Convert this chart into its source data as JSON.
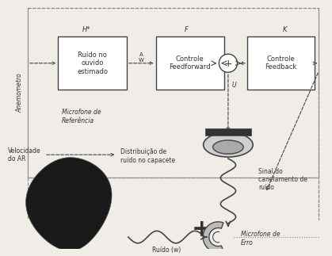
{
  "fig_width": 4.19,
  "fig_height": 3.23,
  "dpi": 100,
  "bg": "#f0ede8",
  "fc": "#ffffff",
  "ec": "#444444",
  "dc": "#888888",
  "tc": "#333333",
  "box1_label": "Ruído no\nouvido\nestimado",
  "box1_top": "H*",
  "box2_label": "Controle\nFeedforward",
  "box2_top": "F",
  "box3_label": "Controle\nFeedback",
  "box3_top": "K",
  "label_AW": "A\nW",
  "label_U": "U",
  "anemometro": "Anemometro",
  "micref": "Microfone de\nReferência",
  "micerro": "Microfone de\nErro",
  "vel_ar": "Velocidade\ndo AR",
  "dist": "Distribuição de\nruído no capacete",
  "sinal": "Sinal do\ncanelamento de\nruído",
  "ruido": "Ruído (w)"
}
